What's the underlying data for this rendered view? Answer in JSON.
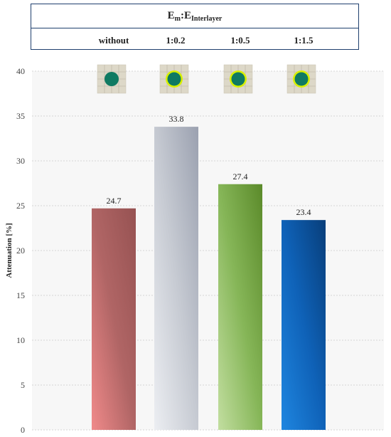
{
  "header": {
    "title_main_1": "E",
    "title_sub_1": "m",
    "title_sep": ":E",
    "title_sub_2": "Interlayer"
  },
  "chart_data": {
    "type": "bar",
    "categories": [
      "without",
      "1:0.2",
      "1:0.5",
      "1:1.5"
    ],
    "values": [
      24.7,
      33.8,
      27.4,
      23.4
    ],
    "value_labels": [
      "24.7",
      "33.8",
      "27.4",
      "23.4"
    ],
    "ylabel": "Attenuation [%]",
    "ylim": [
      0,
      40
    ],
    "yticks": [
      0,
      5,
      10,
      15,
      20,
      25,
      30,
      35,
      40
    ],
    "grid": true,
    "bar_gradients": [
      [
        "#f08a8a",
        "#b06565",
        "#965252"
      ],
      [
        "#eceef2",
        "#c6cad2",
        "#9ba1b0"
      ],
      [
        "#c2dea0",
        "#86b658",
        "#5b8a2a"
      ],
      [
        "#1f86e0",
        "#0f62b8",
        "#083e7a"
      ]
    ],
    "icons": [
      "cross-section-icon-no-interlayer",
      "cross-section-icon-interlayer",
      "cross-section-icon-interlayer",
      "cross-section-icon-interlayer"
    ],
    "icon_colors": {
      "tile": "#ddd8c8",
      "grid": "#b9b2a0",
      "fiber": "#0f7a62",
      "ring": "#d8f000"
    },
    "plot_background": "#f7f7f7"
  }
}
